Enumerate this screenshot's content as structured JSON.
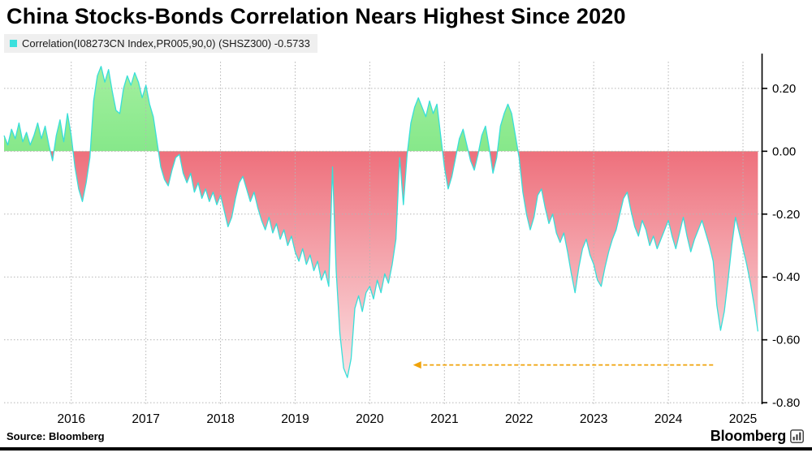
{
  "title": "China Stocks-Bonds Correlation Nears Highest Since 2020",
  "legend": {
    "label": "Correlation(I08273CN Index,PR005,90,0) (SHSZ300) -0.5733",
    "swatch_color": "#3be0dd"
  },
  "footer": {
    "source": "Source:  Bloomberg",
    "brand": "Bloomberg"
  },
  "chart_data": {
    "type": "area",
    "title": "China Stocks-Bonds Correlation Nears Highest Since 2020",
    "xlabel": "",
    "ylabel": "",
    "xlim": [
      2015.1,
      2025.25
    ],
    "ylim": [
      -0.805,
      0.285
    ],
    "x_ticks": [
      2016,
      2017,
      2018,
      2019,
      2020,
      2021,
      2022,
      2023,
      2024,
      2025
    ],
    "y_ticks": [
      "0.20",
      "0.00",
      "-0.20",
      "-0.40",
      "-0.60",
      "-0.80"
    ],
    "grid": "dotted",
    "legend_position": "top-left",
    "colors": {
      "line": "#38dfd9",
      "positive_fill_strong": "#86e88a",
      "positive_fill_light": "#a5f0a0",
      "negative_fill_strong": "#ee707c",
      "negative_fill_light": "#fdeff0",
      "grid": "#b5b5b5",
      "axis": "#000000"
    },
    "annotation_arrow": {
      "y": -0.68,
      "x_from": 2024.6,
      "x_to": 2020.58,
      "direction": "left",
      "style": "dashed",
      "color": "#f0a30a"
    },
    "series": [
      {
        "name": "Correlation(I08273CN Index,PR005,90,0) (SHSZ300)",
        "last_value": -0.5733,
        "points": [
          [
            2015.1,
            0.05
          ],
          [
            2015.15,
            0.02
          ],
          [
            2015.2,
            0.07
          ],
          [
            2015.25,
            0.04
          ],
          [
            2015.3,
            0.09
          ],
          [
            2015.35,
            0.03
          ],
          [
            2015.4,
            0.06
          ],
          [
            2015.45,
            0.02
          ],
          [
            2015.5,
            0.05
          ],
          [
            2015.55,
            0.09
          ],
          [
            2015.6,
            0.04
          ],
          [
            2015.65,
            0.08
          ],
          [
            2015.7,
            0.02
          ],
          [
            2015.75,
            -0.03
          ],
          [
            2015.8,
            0.05
          ],
          [
            2015.85,
            0.1
          ],
          [
            2015.9,
            0.03
          ],
          [
            2015.95,
            0.12
          ],
          [
            2016.0,
            0.05
          ],
          [
            2016.05,
            -0.05
          ],
          [
            2016.1,
            -0.12
          ],
          [
            2016.15,
            -0.16
          ],
          [
            2016.2,
            -0.1
          ],
          [
            2016.25,
            -0.02
          ],
          [
            2016.3,
            0.16
          ],
          [
            2016.35,
            0.24
          ],
          [
            2016.4,
            0.27
          ],
          [
            2016.45,
            0.22
          ],
          [
            2016.5,
            0.26
          ],
          [
            2016.55,
            0.19
          ],
          [
            2016.6,
            0.13
          ],
          [
            2016.65,
            0.12
          ],
          [
            2016.7,
            0.2
          ],
          [
            2016.75,
            0.24
          ],
          [
            2016.8,
            0.21
          ],
          [
            2016.85,
            0.25
          ],
          [
            2016.9,
            0.22
          ],
          [
            2016.95,
            0.17
          ],
          [
            2017.0,
            0.21
          ],
          [
            2017.05,
            0.15
          ],
          [
            2017.1,
            0.11
          ],
          [
            2017.15,
            0.03
          ],
          [
            2017.2,
            -0.05
          ],
          [
            2017.25,
            -0.09
          ],
          [
            2017.3,
            -0.11
          ],
          [
            2017.35,
            -0.06
          ],
          [
            2017.4,
            -0.02
          ],
          [
            2017.45,
            -0.01
          ],
          [
            2017.5,
            -0.07
          ],
          [
            2017.55,
            -0.1
          ],
          [
            2017.6,
            -0.07
          ],
          [
            2017.65,
            -0.13
          ],
          [
            2017.7,
            -0.1
          ],
          [
            2017.75,
            -0.15
          ],
          [
            2017.8,
            -0.12
          ],
          [
            2017.85,
            -0.16
          ],
          [
            2017.9,
            -0.13
          ],
          [
            2017.95,
            -0.17
          ],
          [
            2018.0,
            -0.14
          ],
          [
            2018.05,
            -0.19
          ],
          [
            2018.1,
            -0.24
          ],
          [
            2018.15,
            -0.21
          ],
          [
            2018.2,
            -0.15
          ],
          [
            2018.25,
            -0.1
          ],
          [
            2018.3,
            -0.08
          ],
          [
            2018.35,
            -0.12
          ],
          [
            2018.4,
            -0.16
          ],
          [
            2018.45,
            -0.13
          ],
          [
            2018.5,
            -0.18
          ],
          [
            2018.55,
            -0.22
          ],
          [
            2018.6,
            -0.25
          ],
          [
            2018.65,
            -0.21
          ],
          [
            2018.7,
            -0.26
          ],
          [
            2018.75,
            -0.23
          ],
          [
            2018.8,
            -0.28
          ],
          [
            2018.85,
            -0.25
          ],
          [
            2018.9,
            -0.3
          ],
          [
            2018.95,
            -0.27
          ],
          [
            2019.0,
            -0.32
          ],
          [
            2019.05,
            -0.35
          ],
          [
            2019.1,
            -0.31
          ],
          [
            2019.15,
            -0.36
          ],
          [
            2019.2,
            -0.33
          ],
          [
            2019.25,
            -0.38
          ],
          [
            2019.3,
            -0.35
          ],
          [
            2019.35,
            -0.41
          ],
          [
            2019.4,
            -0.38
          ],
          [
            2019.45,
            -0.43
          ],
          [
            2019.5,
            -0.05
          ],
          [
            2019.55,
            -0.38
          ],
          [
            2019.6,
            -0.58
          ],
          [
            2019.65,
            -0.69
          ],
          [
            2019.7,
            -0.72
          ],
          [
            2019.75,
            -0.66
          ],
          [
            2019.8,
            -0.5
          ],
          [
            2019.85,
            -0.46
          ],
          [
            2019.9,
            -0.51
          ],
          [
            2019.95,
            -0.45
          ],
          [
            2020.0,
            -0.43
          ],
          [
            2020.05,
            -0.47
          ],
          [
            2020.1,
            -0.41
          ],
          [
            2020.15,
            -0.45
          ],
          [
            2020.2,
            -0.39
          ],
          [
            2020.25,
            -0.42
          ],
          [
            2020.3,
            -0.36
          ],
          [
            2020.35,
            -0.28
          ],
          [
            2020.4,
            -0.02
          ],
          [
            2020.45,
            -0.17
          ],
          [
            2020.5,
            -0.01
          ],
          [
            2020.55,
            0.09
          ],
          [
            2020.6,
            0.14
          ],
          [
            2020.65,
            0.17
          ],
          [
            2020.7,
            0.14
          ],
          [
            2020.75,
            0.11
          ],
          [
            2020.8,
            0.16
          ],
          [
            2020.85,
            0.12
          ],
          [
            2020.9,
            0.15
          ],
          [
            2020.95,
            0.05
          ],
          [
            2021.0,
            -0.05
          ],
          [
            2021.05,
            -0.12
          ],
          [
            2021.1,
            -0.08
          ],
          [
            2021.15,
            -0.02
          ],
          [
            2021.2,
            0.04
          ],
          [
            2021.25,
            0.07
          ],
          [
            2021.3,
            0.02
          ],
          [
            2021.35,
            -0.03
          ],
          [
            2021.4,
            -0.06
          ],
          [
            2021.45,
            -0.01
          ],
          [
            2021.5,
            0.05
          ],
          [
            2021.55,
            0.08
          ],
          [
            2021.6,
            0.01
          ],
          [
            2021.65,
            -0.07
          ],
          [
            2021.7,
            -0.02
          ],
          [
            2021.75,
            0.08
          ],
          [
            2021.8,
            0.12
          ],
          [
            2021.85,
            0.15
          ],
          [
            2021.9,
            0.12
          ],
          [
            2021.95,
            0.05
          ],
          [
            2022.0,
            -0.02
          ],
          [
            2022.05,
            -0.13
          ],
          [
            2022.1,
            -0.2
          ],
          [
            2022.15,
            -0.25
          ],
          [
            2022.2,
            -0.21
          ],
          [
            2022.25,
            -0.14
          ],
          [
            2022.3,
            -0.12
          ],
          [
            2022.35,
            -0.18
          ],
          [
            2022.4,
            -0.23
          ],
          [
            2022.45,
            -0.2
          ],
          [
            2022.5,
            -0.26
          ],
          [
            2022.55,
            -0.29
          ],
          [
            2022.6,
            -0.26
          ],
          [
            2022.65,
            -0.32
          ],
          [
            2022.7,
            -0.39
          ],
          [
            2022.75,
            -0.45
          ],
          [
            2022.8,
            -0.37
          ],
          [
            2022.85,
            -0.31
          ],
          [
            2022.9,
            -0.28
          ],
          [
            2022.95,
            -0.33
          ],
          [
            2023.0,
            -0.36
          ],
          [
            2023.05,
            -0.41
          ],
          [
            2023.1,
            -0.43
          ],
          [
            2023.15,
            -0.37
          ],
          [
            2023.2,
            -0.32
          ],
          [
            2023.25,
            -0.28
          ],
          [
            2023.3,
            -0.25
          ],
          [
            2023.35,
            -0.2
          ],
          [
            2023.4,
            -0.15
          ],
          [
            2023.45,
            -0.13
          ],
          [
            2023.5,
            -0.19
          ],
          [
            2023.55,
            -0.24
          ],
          [
            2023.6,
            -0.27
          ],
          [
            2023.65,
            -0.22
          ],
          [
            2023.7,
            -0.25
          ],
          [
            2023.75,
            -0.3
          ],
          [
            2023.8,
            -0.27
          ],
          [
            2023.85,
            -0.31
          ],
          [
            2023.9,
            -0.28
          ],
          [
            2023.95,
            -0.25
          ],
          [
            2024.0,
            -0.22
          ],
          [
            2024.05,
            -0.27
          ],
          [
            2024.1,
            -0.31
          ],
          [
            2024.15,
            -0.26
          ],
          [
            2024.2,
            -0.21
          ],
          [
            2024.25,
            -0.27
          ],
          [
            2024.3,
            -0.32
          ],
          [
            2024.35,
            -0.28
          ],
          [
            2024.4,
            -0.25
          ],
          [
            2024.45,
            -0.22
          ],
          [
            2024.5,
            -0.26
          ],
          [
            2024.55,
            -0.3
          ],
          [
            2024.6,
            -0.35
          ],
          [
            2024.65,
            -0.49
          ],
          [
            2024.7,
            -0.57
          ],
          [
            2024.75,
            -0.51
          ],
          [
            2024.8,
            -0.41
          ],
          [
            2024.85,
            -0.3
          ],
          [
            2024.9,
            -0.21
          ],
          [
            2024.95,
            -0.26
          ],
          [
            2025.0,
            -0.31
          ],
          [
            2025.05,
            -0.36
          ],
          [
            2025.1,
            -0.42
          ],
          [
            2025.15,
            -0.49
          ],
          [
            2025.2,
            -0.5733
          ]
        ]
      }
    ]
  }
}
